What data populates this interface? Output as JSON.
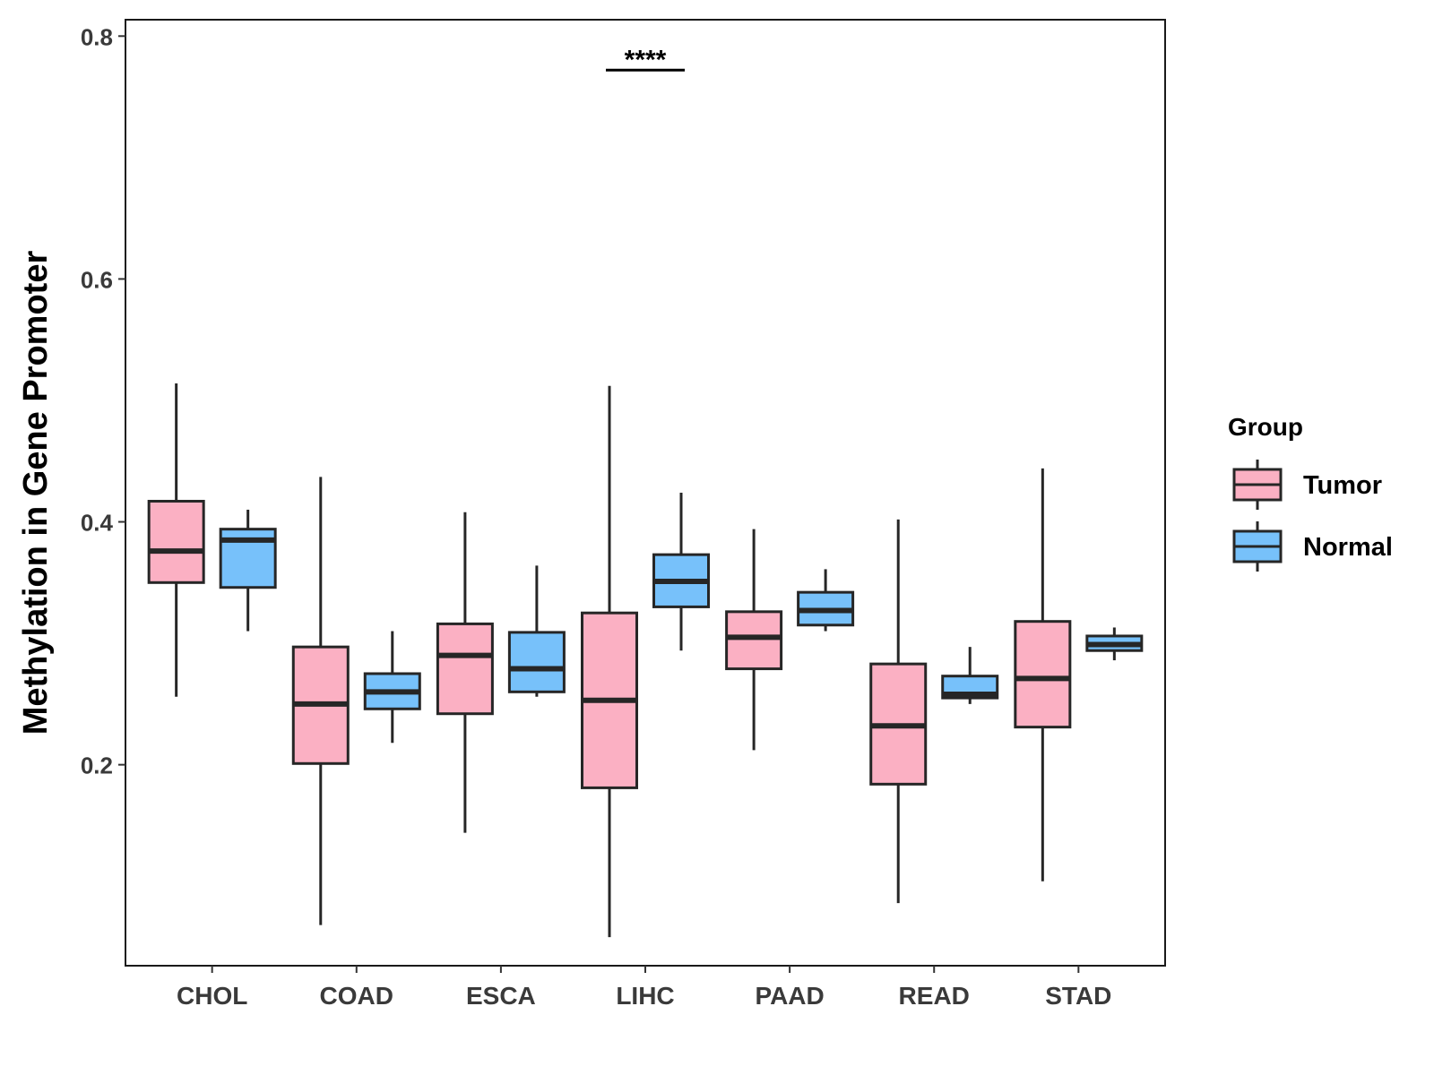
{
  "chart_data": {
    "type": "boxplot",
    "ylabel": "Methylation in Gene Promoter",
    "xlabel": "",
    "ylim": [
      0.0345,
      0.8135
    ],
    "yticks": [
      0.2,
      0.4,
      0.6,
      0.8
    ],
    "ytick_labels": [
      "0.2",
      "0.4",
      "0.6",
      "0.8"
    ],
    "categories": [
      "CHOL",
      "COAD",
      "ESCA",
      "LIHC",
      "PAAD",
      "READ",
      "STAD"
    ],
    "legend": {
      "title": "Group",
      "position": "right",
      "entries": [
        "Tumor",
        "Normal"
      ]
    },
    "colors": {
      "Tumor": "#FBB0C3",
      "Normal": "#77C1FA",
      "outline": "#262626"
    },
    "series": [
      {
        "name": "Tumor",
        "boxes": [
          {
            "category": "CHOL",
            "whisker_low": 0.256,
            "q1": 0.35,
            "median": 0.376,
            "q3": 0.417,
            "whisker_high": 0.514
          },
          {
            "category": "COAD",
            "whisker_low": 0.068,
            "q1": 0.201,
            "median": 0.25,
            "q3": 0.297,
            "whisker_high": 0.437
          },
          {
            "category": "ESCA",
            "whisker_low": 0.144,
            "q1": 0.242,
            "median": 0.29,
            "q3": 0.316,
            "whisker_high": 0.408
          },
          {
            "category": "LIHC",
            "whisker_low": 0.058,
            "q1": 0.181,
            "median": 0.253,
            "q3": 0.325,
            "whisker_high": 0.512
          },
          {
            "category": "PAAD",
            "whisker_low": 0.212,
            "q1": 0.279,
            "median": 0.305,
            "q3": 0.326,
            "whisker_high": 0.394
          },
          {
            "category": "READ",
            "whisker_low": 0.086,
            "q1": 0.184,
            "median": 0.232,
            "q3": 0.283,
            "whisker_high": 0.402
          },
          {
            "category": "STAD",
            "whisker_low": 0.104,
            "q1": 0.231,
            "median": 0.271,
            "q3": 0.318,
            "whisker_high": 0.444
          }
        ]
      },
      {
        "name": "Normal",
        "boxes": [
          {
            "category": "CHOL",
            "whisker_low": 0.31,
            "q1": 0.346,
            "median": 0.385,
            "q3": 0.394,
            "whisker_high": 0.41
          },
          {
            "category": "COAD",
            "whisker_low": 0.218,
            "q1": 0.246,
            "median": 0.26,
            "q3": 0.275,
            "whisker_high": 0.31
          },
          {
            "category": "ESCA",
            "whisker_low": 0.256,
            "q1": 0.26,
            "median": 0.279,
            "q3": 0.309,
            "whisker_high": 0.364
          },
          {
            "category": "LIHC",
            "whisker_low": 0.294,
            "q1": 0.33,
            "median": 0.351,
            "q3": 0.373,
            "whisker_high": 0.424
          },
          {
            "category": "PAAD",
            "whisker_low": 0.31,
            "q1": 0.315,
            "median": 0.327,
            "q3": 0.342,
            "whisker_high": 0.361
          },
          {
            "category": "READ",
            "whisker_low": 0.25,
            "q1": 0.255,
            "median": 0.258,
            "q3": 0.273,
            "whisker_high": 0.297
          },
          {
            "category": "STAD",
            "whisker_low": 0.286,
            "q1": 0.294,
            "median": 0.299,
            "q3": 0.306,
            "whisker_high": 0.313
          }
        ]
      }
    ],
    "annotations": [
      {
        "category": "LIHC",
        "text": "****",
        "y": 0.772
      }
    ]
  }
}
